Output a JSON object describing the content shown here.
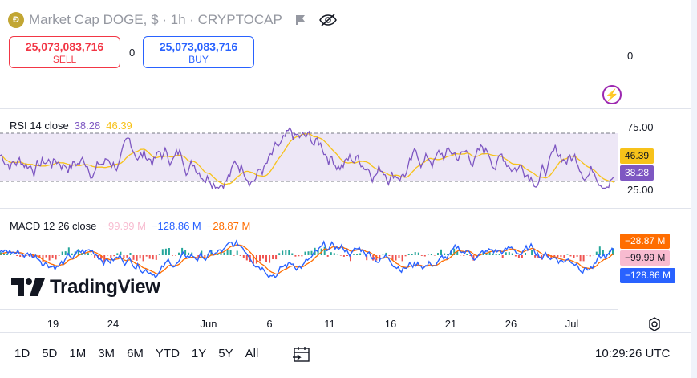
{
  "header": {
    "title": "Market Cap DOGE, $ · 1h · CRYPTOCAP",
    "sell": {
      "price": "25,073,083,716",
      "label": "SELL"
    },
    "buy": {
      "price": "25,073,083,716",
      "label": "BUY"
    },
    "spread": "0"
  },
  "main_axis": {
    "zero_label": "0"
  },
  "rsi": {
    "legend_name": "RSI 14 close",
    "value_rsi": "38.28",
    "value_ma": "46.39",
    "levels": {
      "upper": "75.00",
      "lower": "25.00"
    },
    "badge_ma": "46.39",
    "badge_rsi": "38.28",
    "colors": {
      "rsi": "#7e57c2",
      "ma": "#f7c21a",
      "band": "#ede7f6"
    }
  },
  "macd": {
    "legend_name": "MACD 12 26 close",
    "value_hist": "−99.99 M",
    "value_macd": "−128.86 M",
    "value_signal": "−28.87 M",
    "badge_signal": "−28.87 M",
    "badge_hist": "−99.99 M",
    "badge_macd": "−128.86 M",
    "colors": {
      "macd": "#2962ff",
      "signal": "#ff6d00",
      "hist_pos": "#26a69a",
      "hist_neg": "#ef5350",
      "hist_light": "#f8bbd0"
    }
  },
  "brand": {
    "wordmark": "TradingView"
  },
  "time_axis": [
    "19",
    "24",
    "Jun",
    "6",
    "11",
    "16",
    "21",
    "26",
    "Jul"
  ],
  "toolbar": {
    "ranges": [
      "1D",
      "5D",
      "1M",
      "3M",
      "6M",
      "YTD",
      "1Y",
      "5Y",
      "All"
    ],
    "clock": "10:29:26 UTC"
  }
}
